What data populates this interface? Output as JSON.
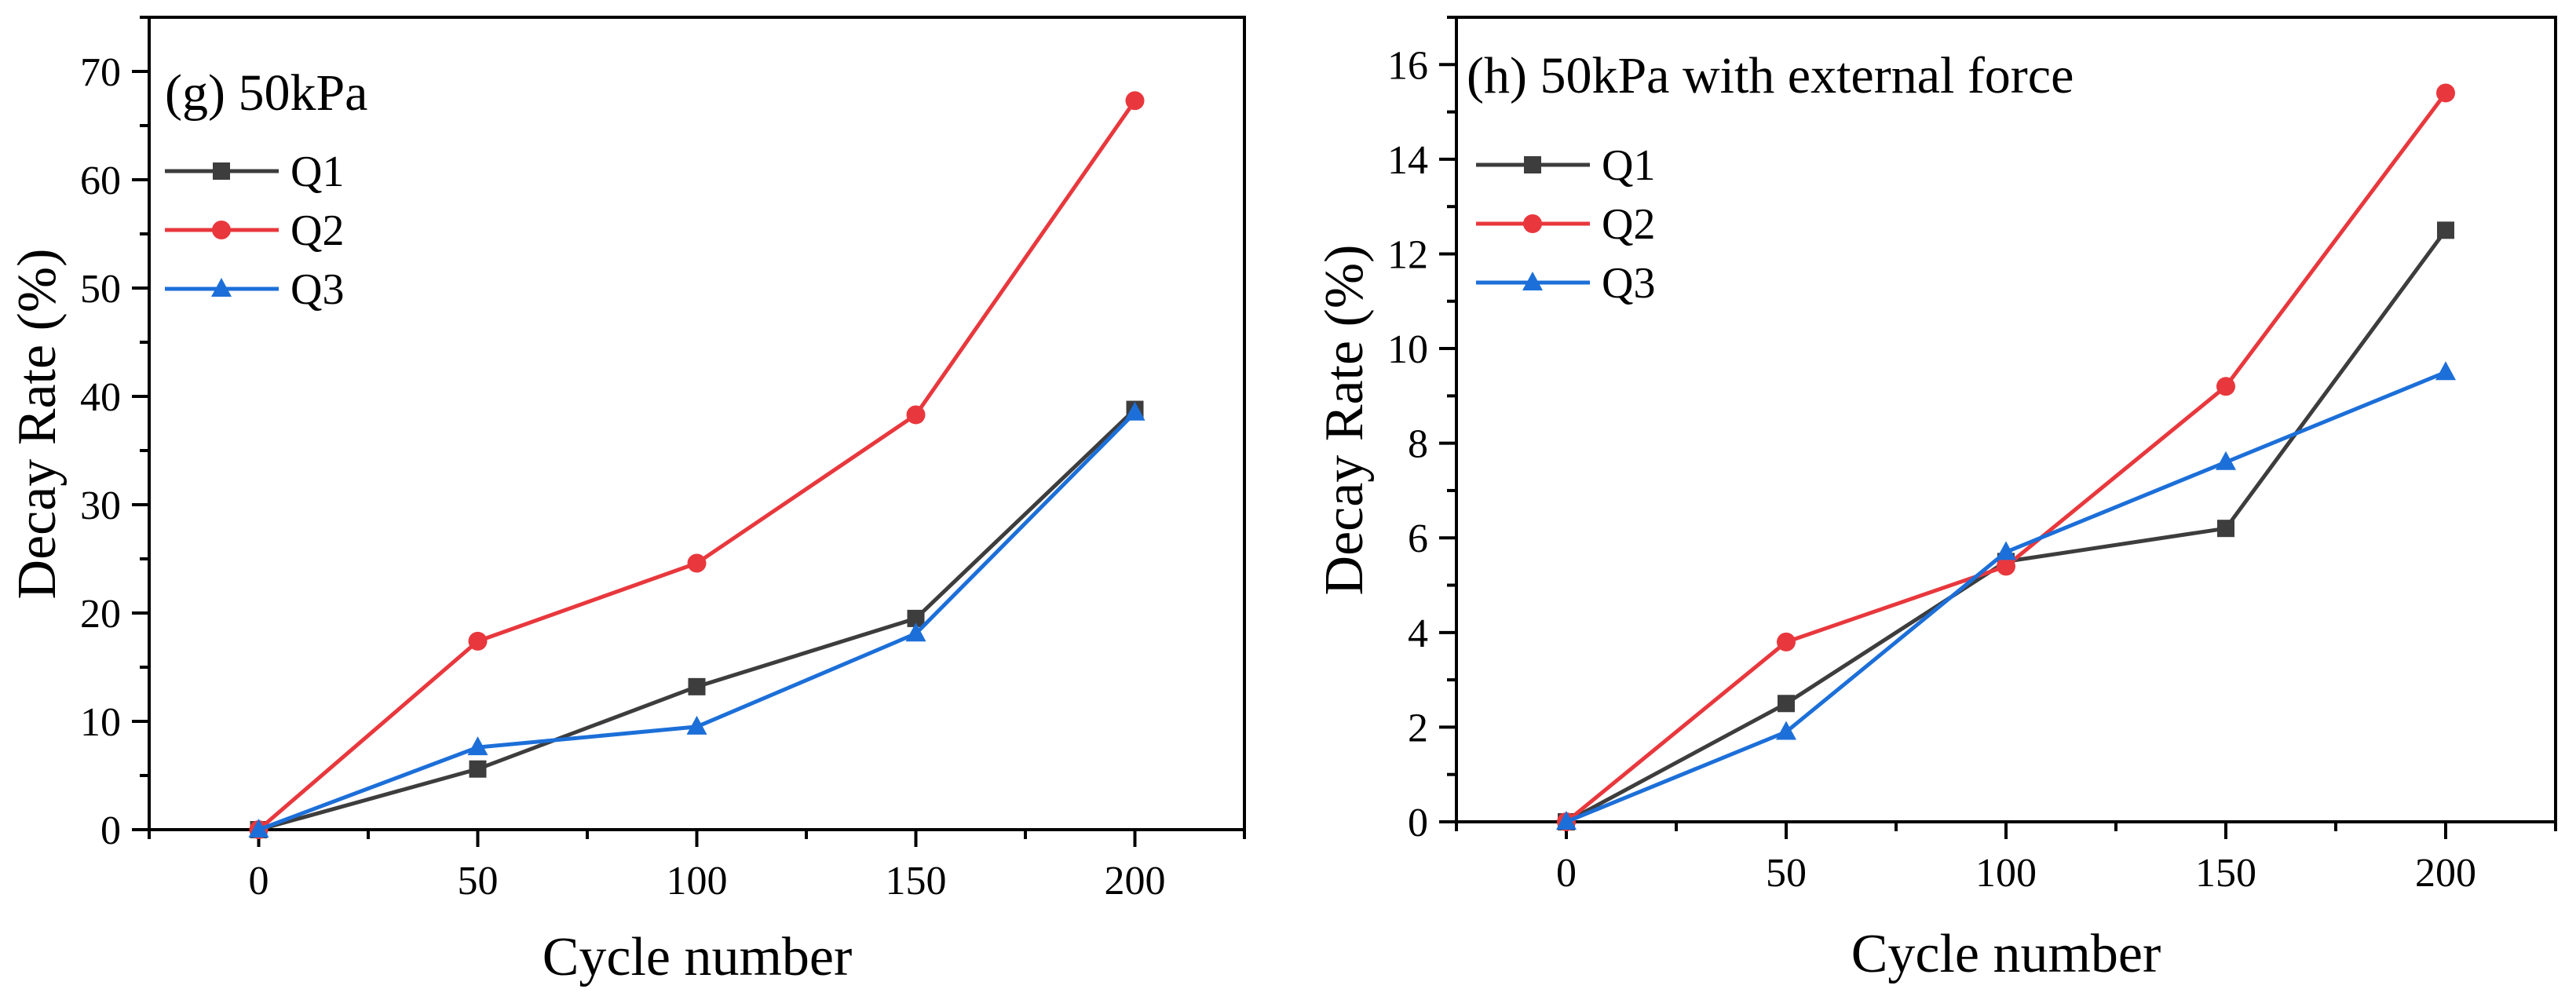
{
  "chart_data": [
    {
      "type": "line",
      "title": "(g) 50kPa",
      "xlabel": "Cycle number",
      "ylabel": "Decay Rate (%)",
      "x": [
        0,
        50,
        100,
        150,
        200
      ],
      "xlim": [
        -25,
        225
      ],
      "ylim": [
        0,
        75
      ],
      "xticks": [
        0,
        50,
        100,
        150,
        200
      ],
      "yticks": [
        0,
        10,
        20,
        30,
        40,
        50,
        60,
        70
      ],
      "legend_position": "top-left",
      "series": [
        {
          "name": "Q1",
          "color": "#3d3d3d",
          "marker": "square",
          "values": [
            0,
            5.6,
            13.2,
            19.5,
            38.8
          ]
        },
        {
          "name": "Q2",
          "color": "#e8383d",
          "marker": "circle",
          "values": [
            0,
            17.4,
            24.6,
            38.3,
            67.3
          ]
        },
        {
          "name": "Q3",
          "color": "#1c6fd8",
          "marker": "triangle",
          "values": [
            0,
            7.6,
            9.5,
            18.1,
            38.5
          ]
        }
      ]
    },
    {
      "type": "line",
      "title": "(h) 50kPa with external force",
      "xlabel": "Cycle number",
      "ylabel": "Decay Rate (%)",
      "x": [
        0,
        50,
        100,
        150,
        200
      ],
      "xlim": [
        -25,
        225
      ],
      "ylim": [
        0,
        17
      ],
      "xticks": [
        0,
        50,
        100,
        150,
        200
      ],
      "yticks": [
        0,
        2,
        4,
        6,
        8,
        10,
        12,
        14,
        16
      ],
      "legend_position": "top-left",
      "series": [
        {
          "name": "Q1",
          "color": "#3d3d3d",
          "marker": "square",
          "values": [
            0,
            2.5,
            5.5,
            6.2,
            12.5
          ]
        },
        {
          "name": "Q2",
          "color": "#e8383d",
          "marker": "circle",
          "values": [
            0,
            3.8,
            5.4,
            9.2,
            15.4
          ]
        },
        {
          "name": "Q3",
          "color": "#1c6fd8",
          "marker": "triangle",
          "values": [
            0,
            1.9,
            5.7,
            7.6,
            9.5
          ]
        }
      ]
    }
  ]
}
